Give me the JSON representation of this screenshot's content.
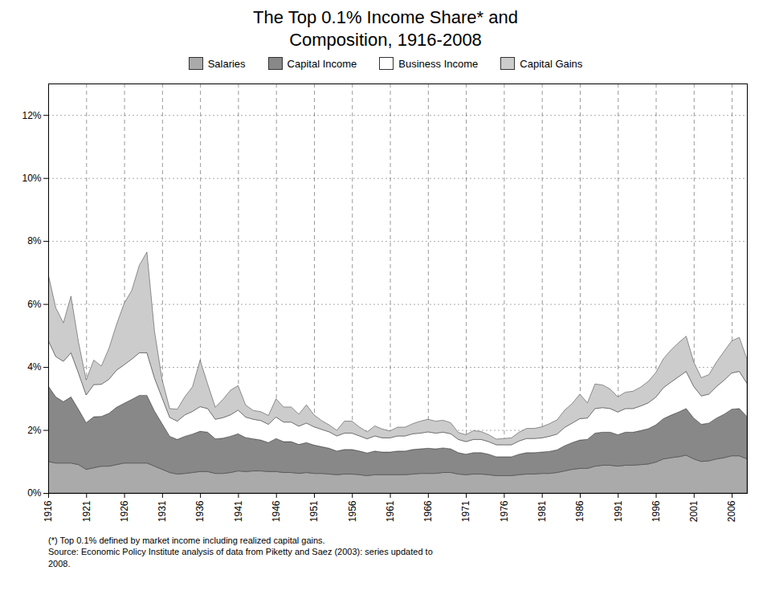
{
  "chart_data": {
    "type": "area",
    "stacked": true,
    "title": "The Top 0.1% Income Share* and\nComposition, 1916-2008",
    "annotations": [
      "(*) Top 0.1% defined by market income including realized capital gains.",
      "Source: Economic Policy Institute analysis of data from Piketty and Saez (2003): series updated to\n2008."
    ],
    "x": [
      1916,
      1917,
      1918,
      1919,
      1920,
      1921,
      1922,
      1923,
      1924,
      1925,
      1926,
      1927,
      1928,
      1929,
      1930,
      1931,
      1932,
      1933,
      1934,
      1935,
      1936,
      1937,
      1938,
      1939,
      1940,
      1941,
      1942,
      1943,
      1944,
      1945,
      1946,
      1947,
      1948,
      1949,
      1950,
      1951,
      1952,
      1953,
      1954,
      1955,
      1956,
      1957,
      1958,
      1959,
      1960,
      1961,
      1962,
      1963,
      1964,
      1965,
      1966,
      1967,
      1968,
      1969,
      1970,
      1971,
      1972,
      1973,
      1974,
      1975,
      1976,
      1977,
      1978,
      1979,
      1980,
      1981,
      1982,
      1983,
      1984,
      1985,
      1986,
      1987,
      1988,
      1989,
      1990,
      1991,
      1992,
      1993,
      1994,
      1995,
      1996,
      1997,
      1998,
      1999,
      2000,
      2001,
      2002,
      2003,
      2004,
      2005,
      2006,
      2007,
      2008
    ],
    "series": [
      {
        "name": "Salaries",
        "color": "#aaaaaa",
        "values": [
          0.01,
          0.0095,
          0.0095,
          0.0095,
          0.009,
          0.0075,
          0.008,
          0.0085,
          0.0085,
          0.009,
          0.0095,
          0.0095,
          0.0095,
          0.0095,
          0.0085,
          0.0075,
          0.0065,
          0.006,
          0.0062,
          0.0065,
          0.0068,
          0.0068,
          0.0062,
          0.0062,
          0.0065,
          0.007,
          0.0068,
          0.007,
          0.007,
          0.0068,
          0.0068,
          0.0065,
          0.0065,
          0.0062,
          0.0065,
          0.0062,
          0.0062,
          0.006,
          0.0058,
          0.006,
          0.006,
          0.0058,
          0.0055,
          0.0058,
          0.0058,
          0.0058,
          0.0058,
          0.0058,
          0.006,
          0.0062,
          0.0062,
          0.0062,
          0.0065,
          0.0065,
          0.006,
          0.0058,
          0.006,
          0.006,
          0.0058,
          0.0055,
          0.0055,
          0.0055,
          0.0058,
          0.006,
          0.006,
          0.0062,
          0.0062,
          0.0065,
          0.007,
          0.0075,
          0.0078,
          0.0078,
          0.0085,
          0.0088,
          0.0088,
          0.0085,
          0.0088,
          0.0088,
          0.009,
          0.0092,
          0.0098,
          0.0108,
          0.0112,
          0.0115,
          0.012,
          0.0108,
          0.01,
          0.0102,
          0.0108,
          0.0112,
          0.0118,
          0.0118,
          0.0108
        ]
      },
      {
        "name": "Capital Income",
        "color": "#888888",
        "values": [
          0.024,
          0.021,
          0.0195,
          0.021,
          0.0175,
          0.0148,
          0.0162,
          0.0158,
          0.0168,
          0.0182,
          0.019,
          0.0202,
          0.0215,
          0.0215,
          0.0175,
          0.0145,
          0.0115,
          0.011,
          0.0118,
          0.0122,
          0.0128,
          0.0125,
          0.011,
          0.0112,
          0.0115,
          0.0118,
          0.0108,
          0.0102,
          0.0098,
          0.0092,
          0.0105,
          0.0098,
          0.0098,
          0.0092,
          0.0095,
          0.009,
          0.0085,
          0.0082,
          0.0075,
          0.0078,
          0.0078,
          0.0075,
          0.0072,
          0.0075,
          0.0072,
          0.0072,
          0.0075,
          0.0075,
          0.0078,
          0.0078,
          0.008,
          0.0078,
          0.0078,
          0.0075,
          0.0068,
          0.0065,
          0.0068,
          0.0068,
          0.0065,
          0.006,
          0.006,
          0.006,
          0.0065,
          0.0068,
          0.0068,
          0.0068,
          0.007,
          0.0072,
          0.008,
          0.0085,
          0.009,
          0.0092,
          0.0105,
          0.0105,
          0.0105,
          0.01,
          0.0105,
          0.0105,
          0.0108,
          0.0112,
          0.0118,
          0.0128,
          0.0135,
          0.0142,
          0.0148,
          0.013,
          0.0118,
          0.012,
          0.013,
          0.0138,
          0.0148,
          0.015,
          0.0135
        ]
      },
      {
        "name": "Business Income",
        "color": "#ffffff",
        "values": [
          0.0145,
          0.0128,
          0.0128,
          0.014,
          0.0115,
          0.0088,
          0.0102,
          0.0102,
          0.0108,
          0.0118,
          0.0122,
          0.0128,
          0.0135,
          0.0135,
          0.0105,
          0.0082,
          0.006,
          0.0058,
          0.0068,
          0.0072,
          0.0078,
          0.0075,
          0.0062,
          0.0065,
          0.0068,
          0.0075,
          0.0065,
          0.0062,
          0.0062,
          0.0058,
          0.0068,
          0.0062,
          0.0062,
          0.0058,
          0.0062,
          0.0058,
          0.0055,
          0.0052,
          0.0048,
          0.0052,
          0.0052,
          0.0048,
          0.0045,
          0.0048,
          0.0045,
          0.0045,
          0.0048,
          0.0048,
          0.005,
          0.005,
          0.0052,
          0.005,
          0.005,
          0.0048,
          0.0042,
          0.004,
          0.0042,
          0.0042,
          0.004,
          0.0038,
          0.0038,
          0.0038,
          0.0042,
          0.0045,
          0.0045,
          0.0045,
          0.0048,
          0.005,
          0.0058,
          0.0062,
          0.0068,
          0.0068,
          0.0078,
          0.0078,
          0.0075,
          0.0072,
          0.0075,
          0.0075,
          0.0078,
          0.0082,
          0.0088,
          0.0098,
          0.0105,
          0.0112,
          0.0118,
          0.01,
          0.009,
          0.0092,
          0.01,
          0.0108,
          0.0115,
          0.0118,
          0.0105
        ]
      },
      {
        "name": "Capital Gains",
        "color": "#cccccc",
        "values": [
          0.021,
          0.0155,
          0.0122,
          0.018,
          0.0098,
          0.0048,
          0.0078,
          0.0058,
          0.0098,
          0.0145,
          0.0195,
          0.0218,
          0.0278,
          0.032,
          0.0148,
          0.0058,
          0.0028,
          0.0038,
          0.0058,
          0.0078,
          0.0148,
          0.0078,
          0.0038,
          0.0058,
          0.0078,
          0.0078,
          0.0038,
          0.0028,
          0.0028,
          0.0028,
          0.0058,
          0.0048,
          0.0048,
          0.0038,
          0.0058,
          0.0038,
          0.0028,
          0.0022,
          0.0018,
          0.0038,
          0.0038,
          0.0028,
          0.0022,
          0.0032,
          0.0028,
          0.0022,
          0.0028,
          0.0028,
          0.0032,
          0.0038,
          0.004,
          0.0038,
          0.0038,
          0.0035,
          0.0022,
          0.0022,
          0.0028,
          0.0025,
          0.0022,
          0.0018,
          0.002,
          0.0022,
          0.0028,
          0.0032,
          0.0032,
          0.0035,
          0.004,
          0.0045,
          0.0055,
          0.0062,
          0.0078,
          0.0048,
          0.0078,
          0.0072,
          0.0062,
          0.0048,
          0.0052,
          0.0055,
          0.006,
          0.0068,
          0.0078,
          0.0092,
          0.0102,
          0.0108,
          0.0112,
          0.0078,
          0.0058,
          0.0062,
          0.0078,
          0.0092,
          0.0102,
          0.0108,
          0.0078
        ]
      }
    ],
    "xlim": [
      1916,
      2008
    ],
    "xticks": [
      1916,
      1921,
      1926,
      1931,
      1936,
      1941,
      1946,
      1951,
      1956,
      1961,
      1966,
      1971,
      1976,
      1981,
      1986,
      1991,
      1996,
      2001,
      2006
    ],
    "ylim": [
      0,
      0.13
    ],
    "yticks": [
      {
        "value": 0,
        "label": "0%"
      },
      {
        "value": 0.02,
        "label": "2%"
      },
      {
        "value": 0.04,
        "label": "4%"
      },
      {
        "value": 0.06,
        "label": "6%"
      },
      {
        "value": 0.08,
        "label": "8%"
      },
      {
        "value": 0.1,
        "label": "10%"
      },
      {
        "value": 0.12,
        "label": "12%"
      }
    ],
    "grid": true,
    "legend": "top"
  }
}
